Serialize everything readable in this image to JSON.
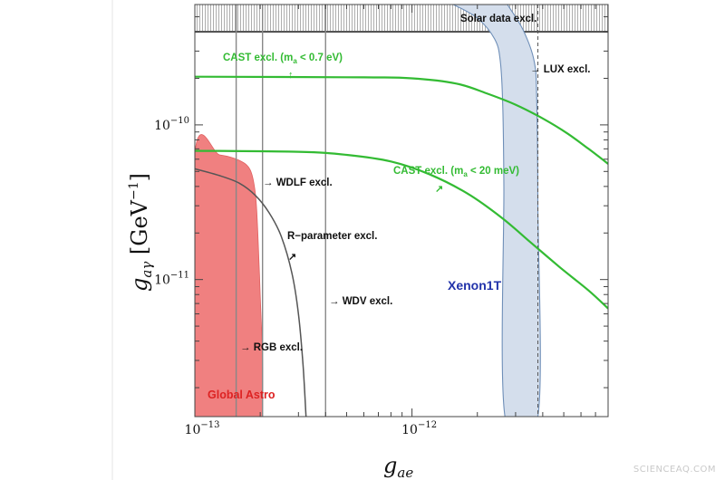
{
  "watermark": "SCIENCEAQ.COM",
  "chart_data": {
    "type": "line",
    "title": "",
    "xlabel": "g_ae",
    "ylabel": "g_aγ [GeV^-1]",
    "x_scale": "log",
    "y_scale": "log",
    "xlim": [
      1e-13,
      8e-12
    ],
    "ylim": [
      1.3e-12,
      6e-10
    ],
    "grid": false,
    "x_ticks": [
      {
        "value": 1e-13,
        "label": "10",
        "exp": "−13"
      },
      {
        "value": 1e-12,
        "label": "10",
        "exp": "−12"
      }
    ],
    "y_ticks": [
      {
        "value": 1e-11,
        "label": "10",
        "exp": "−11"
      },
      {
        "value": 1e-10,
        "label": "10",
        "exp": "−10"
      }
    ],
    "colors": {
      "cast": "#33bb33",
      "global_astro_fill": "#f08080",
      "global_astro_label": "#dd2222",
      "xenon_fill": "#d4deec",
      "xenon_edge": "#6f8fb8",
      "xenon_label": "#2233aa",
      "vertical_lines": "#888888",
      "solar_band": "#555555",
      "text": "#111111"
    },
    "series": [
      {
        "name": "CAST excl. (m_a < 0.7 eV)",
        "kind": "line",
        "points": [
          [
            1e-13,
            2.05e-10
          ],
          [
            6e-13,
            2.03e-10
          ],
          [
            1e-12,
            2e-10
          ],
          [
            1.6e-12,
            1.85e-10
          ],
          [
            2.2e-12,
            1.6e-10
          ],
          [
            3e-12,
            1.35e-10
          ],
          [
            4e-12,
            1.1e-10
          ],
          [
            5.2e-12,
            8.8e-11
          ],
          [
            6.5e-12,
            7e-11
          ],
          [
            8e-12,
            5.6e-11
          ]
        ]
      },
      {
        "name": "CAST excl. (m_a < 20 meV)",
        "kind": "line",
        "points": [
          [
            1e-13,
            6.8e-11
          ],
          [
            3e-13,
            6.7e-11
          ],
          [
            5e-13,
            6.4e-11
          ],
          [
            8e-13,
            5.8e-11
          ],
          [
            1.2e-12,
            4.8e-11
          ],
          [
            1.8e-12,
            3.6e-11
          ],
          [
            2.6e-12,
            2.5e-11
          ],
          [
            3.5e-12,
            1.75e-11
          ],
          [
            4.8e-12,
            1.2e-11
          ],
          [
            6.5e-12,
            8.5e-12
          ],
          [
            8e-12,
            6.5e-12
          ]
        ]
      },
      {
        "name": "R-parameter excl.",
        "kind": "line",
        "points": [
          [
            1e-13,
            5.2e-11
          ],
          [
            1.3e-13,
            4.7e-11
          ],
          [
            1.6e-13,
            4.2e-11
          ],
          [
            1.9e-13,
            3.5e-11
          ],
          [
            2.2e-13,
            2.7e-11
          ],
          [
            2.5e-13,
            1.9e-11
          ],
          [
            2.8e-13,
            1.1e-11
          ],
          [
            3e-13,
            6e-12
          ],
          [
            3.15e-13,
            2.8e-12
          ],
          [
            3.25e-13,
            1.3e-12
          ]
        ]
      },
      {
        "name": "Global Astro",
        "kind": "filled_region",
        "points": [
          [
            1e-13,
            1.3e-12
          ],
          [
            1e-13,
            6.5e-11
          ],
          [
            1.3e-13,
            6.4e-11
          ],
          [
            1.6e-13,
            5.9e-11
          ],
          [
            1.8e-13,
            5.1e-11
          ],
          [
            1.9e-13,
            3.6e-11
          ],
          [
            1.95e-13,
            2e-11
          ],
          [
            2e-13,
            8e-12
          ],
          [
            2.05e-13,
            3e-12
          ],
          [
            2.05e-13,
            1.3e-12
          ]
        ]
      },
      {
        "name": "Xenon1T",
        "kind": "band",
        "points": [
          [
            1.55e-12,
            6e-10
          ],
          [
            2e-12,
            4.9e-10
          ],
          [
            2.4e-12,
            3.6e-10
          ],
          [
            2.55e-12,
            2.6e-10
          ],
          [
            2.62e-12,
            1.3e-10
          ],
          [
            2.65e-12,
            4e-11
          ],
          [
            2.68e-12,
            1.3e-12
          ],
          [
            3.8e-12,
            1.3e-12
          ],
          [
            3.8e-12,
            3e-11
          ],
          [
            3.75e-12,
            1.5e-10
          ],
          [
            3.65e-12,
            2.6e-10
          ],
          [
            3.25e-12,
            4.1e-10
          ],
          [
            2.75e-12,
            6e-10
          ]
        ]
      }
    ],
    "vertical_lines": [
      {
        "name": "WDLF excl.",
        "x": 1.55e-13,
        "style": "solid"
      },
      {
        "name": "RGB excl.",
        "x": 2.05e-13,
        "style": "solid"
      },
      {
        "name": "WDV excl.",
        "x": 4e-13,
        "style": "solid"
      },
      {
        "name": "LUX excl.",
        "x": 3.8e-12,
        "style": "dashed"
      }
    ],
    "horizontal_bands": [
      {
        "name": "Solar data excl.",
        "y_from": 4e-10,
        "y_to": 6e-10
      }
    ],
    "annotations": {
      "cast_07": {
        "pre": "CAST excl. (m",
        "sub": "a",
        "post": " < 0.7 eV)",
        "arrow": "↑"
      },
      "cast_20": {
        "pre": "CAST excl. (m",
        "sub": "a",
        "post": " < 20 meV)",
        "arrow": "↗"
      },
      "lux": "→ LUX excl.",
      "wdlf": "→  WDLF excl.",
      "rparam": "R−parameter excl.",
      "rparam_arrow": "↗",
      "wdv": "→  WDV excl.",
      "rgb": "→ RGB excl.",
      "global_astro": "Global Astro",
      "xenon": "Xenon1T",
      "solar": "Solar data excl."
    },
    "axis_label_parts": {
      "x": {
        "main": "g",
        "sub": "ae"
      },
      "y": {
        "main": "g",
        "sub": "aγ",
        "unit_open": " [GeV",
        "unit_exp": "−1",
        "unit_close": "]"
      }
    }
  }
}
